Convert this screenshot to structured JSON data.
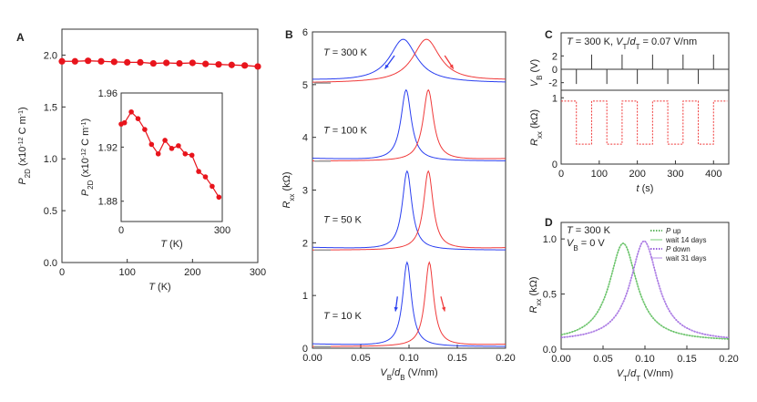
{
  "chart_data": [
    {
      "id": "A",
      "type": "scatter",
      "panel_label": "A",
      "xlabel": "T (K)",
      "ylabel": "P2D (x10^-12 C m^-1)",
      "xlim": [
        0,
        300
      ],
      "ylim": [
        0,
        2.25
      ],
      "xticks": [
        0,
        100,
        200,
        300
      ],
      "yticks": [
        0.0,
        0.5,
        1.0,
        1.5,
        2.0
      ],
      "ytick_labels": [
        "0.0",
        "0.5",
        "1.0",
        "1.5",
        "2.0"
      ],
      "series": [
        {
          "color": "#e8141c",
          "x": [
            0,
            20,
            40,
            60,
            80,
            100,
            120,
            140,
            160,
            180,
            200,
            220,
            240,
            260,
            280,
            300
          ],
          "y": [
            1.94,
            1.94,
            1.945,
            1.94,
            1.935,
            1.93,
            1.93,
            1.92,
            1.925,
            1.92,
            1.925,
            1.915,
            1.91,
            1.905,
            1.9,
            1.89
          ]
        }
      ],
      "inset": {
        "xlabel": "T (K)",
        "ylabel": "P2D (x10^-12 C m^-1)",
        "xlim": [
          0,
          300
        ],
        "ylim": [
          1.865,
          1.96
        ],
        "xticks": [
          0,
          300
        ],
        "yticks": [
          1.88,
          1.92,
          1.96
        ],
        "ytick_labels": [
          "1.88",
          "1.92",
          "1.96"
        ],
        "x": [
          0,
          10,
          30,
          50,
          70,
          90,
          110,
          130,
          150,
          170,
          190,
          210,
          230,
          250,
          270,
          290
        ],
        "y": [
          1.937,
          1.938,
          1.946,
          1.941,
          1.933,
          1.922,
          1.915,
          1.925,
          1.919,
          1.921,
          1.915,
          1.914,
          1.902,
          1.898,
          1.891,
          1.883
        ]
      }
    },
    {
      "id": "B",
      "type": "line",
      "panel_label": "B",
      "xlabel": "VB/dB (V/nm)",
      "ylabel": "Rxx (kΩ)",
      "xlim": [
        0,
        0.2
      ],
      "ylim": [
        0,
        6
      ],
      "xticks": [
        0,
        0.05,
        0.1,
        0.15,
        0.2
      ],
      "xtick_labels": [
        "0.00",
        "0.05",
        "0.10",
        "0.15",
        "0.20"
      ],
      "yticks": [
        0,
        1,
        2,
        3,
        4,
        5,
        6
      ],
      "curves": [
        {
          "label": "T = 300 K",
          "offset": 5.0,
          "blue_peak": 0.094,
          "red_peak": 0.118,
          "height": 0.83,
          "width": 0.017
        },
        {
          "label": "T = 100 K",
          "offset": 3.52,
          "blue_peak": 0.097,
          "red_peak": 0.12,
          "height": 1.35,
          "width": 0.0065
        },
        {
          "label": "T = 50 K",
          "offset": 1.83,
          "blue_peak": 0.098,
          "red_peak": 0.12,
          "height": 1.5,
          "width": 0.006
        },
        {
          "label": "T = 10 K",
          "offset": 0.0,
          "blue_peak": 0.098,
          "red_peak": 0.121,
          "height": 1.6,
          "width": 0.0055
        }
      ],
      "blue_color": "#2a3ff0",
      "red_color": "#f03a3a"
    },
    {
      "id": "C",
      "type": "line",
      "panel_label": "C",
      "title": "T = 300 K, VT/dT = 0.07 V/nm",
      "xlabel": "t (s)",
      "top": {
        "ylabel": "VB (V)",
        "yticks": [
          -2,
          0,
          2
        ],
        "ytick_labels": [
          "-2",
          "0",
          "2"
        ],
        "pulse_times": [
          0,
          40,
          80,
          120,
          160,
          200,
          240,
          280,
          320,
          360,
          400,
          440
        ]
      },
      "bottom": {
        "ylabel": "Rxx (kΩ)",
        "yticks": [
          0,
          1
        ],
        "ytick_labels": [
          "0",
          "1"
        ],
        "high": 0.95,
        "low": 0.3,
        "period": 80
      },
      "xlim": [
        0,
        440
      ],
      "xticks": [
        0,
        100,
        200,
        300,
        400
      ],
      "color": "#f03a3a"
    },
    {
      "id": "D",
      "type": "line",
      "panel_label": "D",
      "annotations": [
        "T = 300 K",
        "VB = 0 V"
      ],
      "xlabel": "VT/dT (V/nm)",
      "ylabel": "Rxx (kΩ)",
      "xlim": [
        0,
        0.2
      ],
      "ylim": [
        0,
        1.15
      ],
      "xticks": [
        0,
        0.05,
        0.1,
        0.15,
        0.2
      ],
      "xtick_labels": [
        "0.00",
        "0.05",
        "0.10",
        "0.15",
        "0.20"
      ],
      "yticks": [
        0,
        0.5,
        1.0
      ],
      "ytick_labels": [
        "0.0",
        "0.5",
        "1.0"
      ],
      "series": [
        {
          "name": "P up",
          "color": "#2f9e2f",
          "peak": 0.074,
          "height": 0.96,
          "base": 0.07,
          "width": 0.02,
          "style": "dotted"
        },
        {
          "name": "wait 14 days",
          "color": "#77cc77",
          "peak": 0.074,
          "height": 0.96,
          "base": 0.07,
          "width": 0.02,
          "style": "solid"
        },
        {
          "name": "P down",
          "color": "#7a2fd0",
          "peak": 0.099,
          "height": 0.98,
          "base": 0.07,
          "width": 0.02,
          "style": "dotted"
        },
        {
          "name": "wait 31 days",
          "color": "#b58be8",
          "peak": 0.099,
          "height": 0.98,
          "base": 0.07,
          "width": 0.02,
          "style": "solid"
        }
      ]
    }
  ]
}
